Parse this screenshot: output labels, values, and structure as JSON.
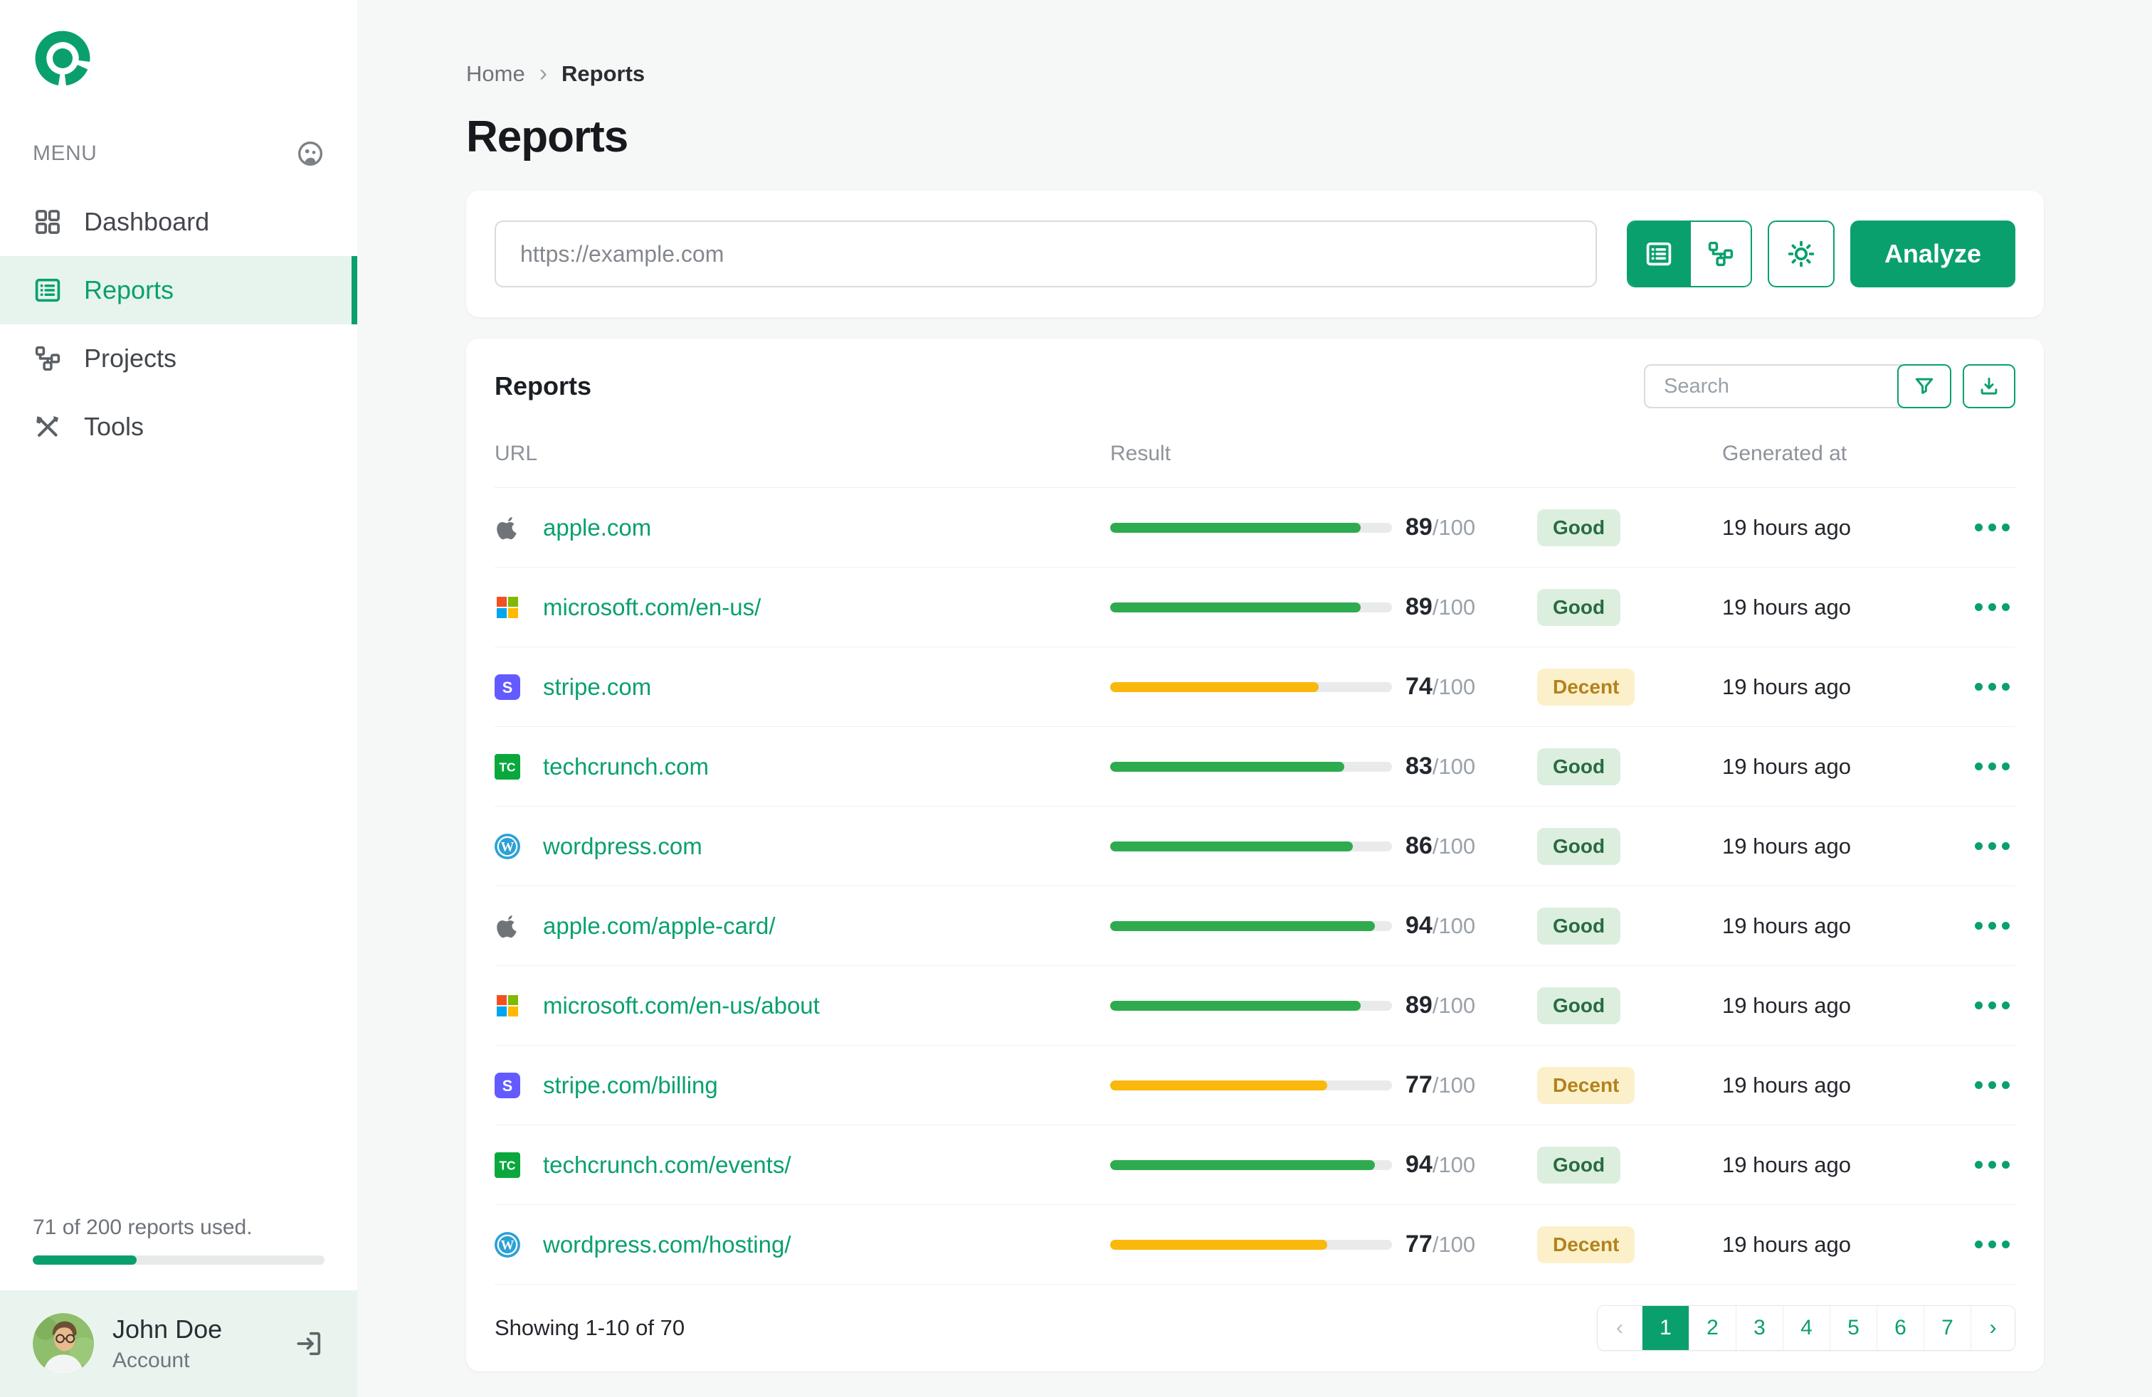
{
  "sidebar": {
    "menu_label": "MENU",
    "items": [
      {
        "label": "Dashboard",
        "icon": "dashboard-icon",
        "active": false
      },
      {
        "label": "Reports",
        "icon": "reports-icon",
        "active": true
      },
      {
        "label": "Projects",
        "icon": "sitemap-icon",
        "active": false
      },
      {
        "label": "Tools",
        "icon": "tools-icon",
        "active": false
      }
    ],
    "usage": {
      "text": "71 of 200 reports used.",
      "percent": 35.5
    },
    "user": {
      "name": "John Doe",
      "role": "Account"
    }
  },
  "breadcrumb": {
    "home": "Home",
    "current": "Reports"
  },
  "page_title": "Reports",
  "analyze_bar": {
    "url_placeholder": "https://example.com",
    "analyze_label": "Analyze"
  },
  "reports": {
    "title": "Reports",
    "search_placeholder": "Search",
    "columns": {
      "url": "URL",
      "result": "Result",
      "generated": "Generated at"
    },
    "rows": [
      {
        "favicon": "apple",
        "url": "apple.com",
        "score": 89,
        "max": "/100",
        "bar": "green",
        "badge": "Good",
        "badge_type": "good",
        "generated": "19 hours ago"
      },
      {
        "favicon": "microsoft",
        "url": "microsoft.com/en-us/",
        "score": 89,
        "max": "/100",
        "bar": "green",
        "badge": "Good",
        "badge_type": "good",
        "generated": "19 hours ago"
      },
      {
        "favicon": "stripe",
        "url": "stripe.com",
        "score": 74,
        "max": "/100",
        "bar": "yellow",
        "badge": "Decent",
        "badge_type": "decent",
        "generated": "19 hours ago"
      },
      {
        "favicon": "techcrunch",
        "url": "techcrunch.com",
        "score": 83,
        "max": "/100",
        "bar": "green",
        "badge": "Good",
        "badge_type": "good",
        "generated": "19 hours ago"
      },
      {
        "favicon": "wordpress",
        "url": "wordpress.com",
        "score": 86,
        "max": "/100",
        "bar": "green",
        "badge": "Good",
        "badge_type": "good",
        "generated": "19 hours ago"
      },
      {
        "favicon": "apple",
        "url": "apple.com/apple-card/",
        "score": 94,
        "max": "/100",
        "bar": "green",
        "badge": "Good",
        "badge_type": "good",
        "generated": "19 hours ago"
      },
      {
        "favicon": "microsoft",
        "url": "microsoft.com/en-us/about",
        "score": 89,
        "max": "/100",
        "bar": "green",
        "badge": "Good",
        "badge_type": "good",
        "generated": "19 hours ago"
      },
      {
        "favicon": "stripe",
        "url": "stripe.com/billing",
        "score": 77,
        "max": "/100",
        "bar": "yellow",
        "badge": "Decent",
        "badge_type": "decent",
        "generated": "19 hours ago"
      },
      {
        "favicon": "techcrunch",
        "url": "techcrunch.com/events/",
        "score": 94,
        "max": "/100",
        "bar": "green",
        "badge": "Good",
        "badge_type": "good",
        "generated": "19 hours ago"
      },
      {
        "favicon": "wordpress",
        "url": "wordpress.com/hosting/",
        "score": 77,
        "max": "/100",
        "bar": "yellow",
        "badge": "Decent",
        "badge_type": "decent",
        "generated": "19 hours ago"
      }
    ],
    "footer": {
      "showing": "Showing 1-10 of 70",
      "prev": "‹",
      "next": "›",
      "pages": [
        "1",
        "2",
        "3",
        "4",
        "5",
        "6",
        "7"
      ],
      "active_page": "1"
    }
  },
  "colors": {
    "brand": "#0aa06e",
    "bar_green": "#2fab4f",
    "bar_yellow": "#f9b80b",
    "good_badge_bg": "#dcefdf",
    "decent_badge_bg": "#fcf0cb"
  }
}
